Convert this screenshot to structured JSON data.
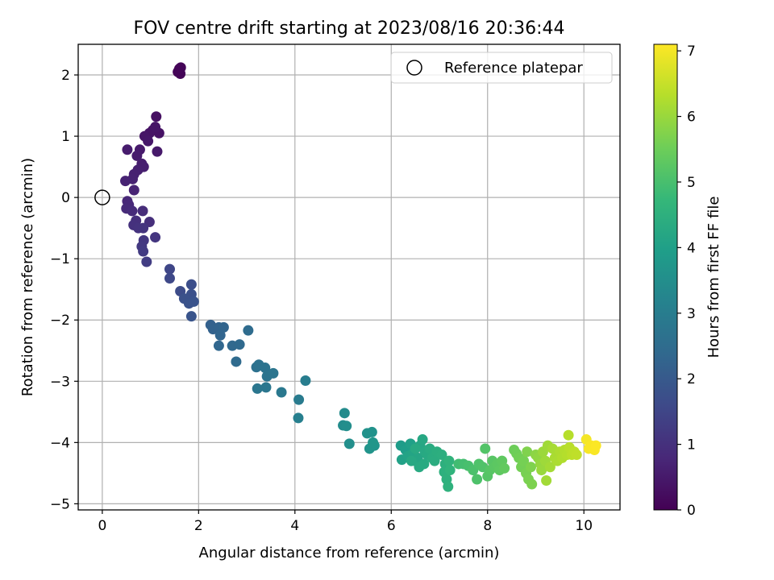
{
  "chart_data": {
    "type": "scatter",
    "title": "FOV centre drift starting at 2023/08/16 20:36:44",
    "xlabel": "Angular distance from reference (arcmin)",
    "ylabel": "Rotation from reference (arcmin)",
    "xlim": [
      -0.5,
      10.75
    ],
    "ylim": [
      -5.1,
      2.5
    ],
    "xticks": [
      0,
      2,
      4,
      6,
      8,
      10
    ],
    "yticks": [
      -5,
      -4,
      -3,
      -2,
      -1,
      0,
      1,
      2
    ],
    "grid": true,
    "legend": {
      "placement": "top-right",
      "entries": [
        "Reference platepar"
      ]
    },
    "reference_point": {
      "x": 0,
      "y": 0
    },
    "colorbar": {
      "label": "Hours from first FF file",
      "range": [
        0,
        7.1
      ],
      "ticks": [
        0,
        1,
        2,
        3,
        4,
        5,
        6,
        7
      ],
      "colormap": [
        "#440154",
        "#482878",
        "#3e4989",
        "#31688e",
        "#26828e",
        "#1f9e89",
        "#35b779",
        "#6ece58",
        "#b5de2b",
        "#fde725"
      ]
    },
    "points": [
      {
        "x": 1.6,
        "y": 2.1,
        "c": 0.05
      },
      {
        "x": 1.62,
        "y": 2.02,
        "c": 0.06
      },
      {
        "x": 1.57,
        "y": 2.05,
        "c": 0.07
      },
      {
        "x": 1.63,
        "y": 2.12,
        "c": 0.08
      },
      {
        "x": 1.12,
        "y": 1.32,
        "c": 0.3
      },
      {
        "x": 1.05,
        "y": 1.1,
        "c": 0.32
      },
      {
        "x": 1.18,
        "y": 1.05,
        "c": 0.35
      },
      {
        "x": 0.98,
        "y": 1.05,
        "c": 0.38
      },
      {
        "x": 1.1,
        "y": 1.15,
        "c": 0.4
      },
      {
        "x": 0.88,
        "y": 1.0,
        "c": 0.42
      },
      {
        "x": 0.95,
        "y": 0.92,
        "c": 0.45
      },
      {
        "x": 1.14,
        "y": 0.75,
        "c": 0.48
      },
      {
        "x": 0.78,
        "y": 0.78,
        "c": 0.5
      },
      {
        "x": 0.72,
        "y": 0.68,
        "c": 0.52
      },
      {
        "x": 0.52,
        "y": 0.78,
        "c": 0.55
      },
      {
        "x": 0.82,
        "y": 0.55,
        "c": 0.58
      },
      {
        "x": 0.86,
        "y": 0.5,
        "c": 0.6
      },
      {
        "x": 0.74,
        "y": 0.45,
        "c": 0.62
      },
      {
        "x": 0.66,
        "y": 0.38,
        "c": 0.64
      },
      {
        "x": 0.63,
        "y": 0.3,
        "c": 0.66
      },
      {
        "x": 0.48,
        "y": 0.27,
        "c": 0.68
      },
      {
        "x": 0.66,
        "y": 0.12,
        "c": 0.7
      },
      {
        "x": 0.52,
        "y": -0.06,
        "c": 0.8
      },
      {
        "x": 0.55,
        "y": -0.12,
        "c": 0.82
      },
      {
        "x": 0.5,
        "y": -0.18,
        "c": 0.85
      },
      {
        "x": 0.62,
        "y": -0.22,
        "c": 0.88
      },
      {
        "x": 0.84,
        "y": -0.22,
        "c": 0.9
      },
      {
        "x": 0.98,
        "y": -0.4,
        "c": 0.95
      },
      {
        "x": 0.7,
        "y": -0.38,
        "c": 0.98
      },
      {
        "x": 0.65,
        "y": -0.45,
        "c": 1.0
      },
      {
        "x": 0.75,
        "y": -0.5,
        "c": 1.05
      },
      {
        "x": 0.85,
        "y": -0.5,
        "c": 1.08
      },
      {
        "x": 1.1,
        "y": -0.65,
        "c": 1.1
      },
      {
        "x": 0.86,
        "y": -0.7,
        "c": 1.15
      },
      {
        "x": 0.82,
        "y": -0.8,
        "c": 1.2
      },
      {
        "x": 0.85,
        "y": -0.88,
        "c": 1.25
      },
      {
        "x": 0.92,
        "y": -1.05,
        "c": 1.3
      },
      {
        "x": 1.4,
        "y": -1.17,
        "c": 1.5
      },
      {
        "x": 1.4,
        "y": -1.32,
        "c": 1.55
      },
      {
        "x": 1.62,
        "y": -1.53,
        "c": 1.65
      },
      {
        "x": 1.85,
        "y": -1.42,
        "c": 1.7
      },
      {
        "x": 1.85,
        "y": -1.58,
        "c": 1.75
      },
      {
        "x": 1.7,
        "y": -1.65,
        "c": 1.78
      },
      {
        "x": 1.8,
        "y": -1.73,
        "c": 1.8
      },
      {
        "x": 1.9,
        "y": -1.7,
        "c": 1.83
      },
      {
        "x": 1.85,
        "y": -1.94,
        "c": 1.87
      },
      {
        "x": 2.25,
        "y": -2.08,
        "c": 2.2
      },
      {
        "x": 2.3,
        "y": -2.15,
        "c": 2.22
      },
      {
        "x": 2.42,
        "y": -2.12,
        "c": 2.25
      },
      {
        "x": 2.52,
        "y": -2.12,
        "c": 2.28
      },
      {
        "x": 2.45,
        "y": -2.25,
        "c": 2.3
      },
      {
        "x": 2.42,
        "y": -2.42,
        "c": 2.35
      },
      {
        "x": 2.7,
        "y": -2.42,
        "c": 2.4
      },
      {
        "x": 2.85,
        "y": -2.4,
        "c": 2.42
      },
      {
        "x": 2.78,
        "y": -2.68,
        "c": 2.45
      },
      {
        "x": 3.03,
        "y": -2.17,
        "c": 2.5
      },
      {
        "x": 3.2,
        "y": -2.77,
        "c": 2.65
      },
      {
        "x": 3.25,
        "y": -2.73,
        "c": 2.67
      },
      {
        "x": 3.38,
        "y": -2.78,
        "c": 2.7
      },
      {
        "x": 3.42,
        "y": -2.92,
        "c": 2.72
      },
      {
        "x": 3.55,
        "y": -2.87,
        "c": 2.75
      },
      {
        "x": 3.22,
        "y": -3.12,
        "c": 2.78
      },
      {
        "x": 3.4,
        "y": -3.1,
        "c": 2.8
      },
      {
        "x": 3.72,
        "y": -3.18,
        "c": 2.85
      },
      {
        "x": 4.08,
        "y": -3.3,
        "c": 2.95
      },
      {
        "x": 4.22,
        "y": -2.99,
        "c": 3.0
      },
      {
        "x": 4.07,
        "y": -3.6,
        "c": 3.05
      },
      {
        "x": 5.03,
        "y": -3.52,
        "c": 3.4
      },
      {
        "x": 5.0,
        "y": -3.72,
        "c": 3.45
      },
      {
        "x": 5.07,
        "y": -3.73,
        "c": 3.48
      },
      {
        "x": 5.13,
        "y": -4.02,
        "c": 3.52
      },
      {
        "x": 5.5,
        "y": -3.85,
        "c": 3.6
      },
      {
        "x": 5.6,
        "y": -3.83,
        "c": 3.62
      },
      {
        "x": 5.55,
        "y": -4.1,
        "c": 3.65
      },
      {
        "x": 5.65,
        "y": -4.05,
        "c": 3.7
      },
      {
        "x": 5.62,
        "y": -4.0,
        "c": 3.72
      },
      {
        "x": 6.2,
        "y": -4.05,
        "c": 3.9
      },
      {
        "x": 6.3,
        "y": -4.12,
        "c": 3.95
      },
      {
        "x": 6.4,
        "y": -4.02,
        "c": 4.0
      },
      {
        "x": 6.22,
        "y": -4.28,
        "c": 4.05
      },
      {
        "x": 6.35,
        "y": -4.22,
        "c": 4.1
      },
      {
        "x": 6.45,
        "y": -4.18,
        "c": 4.12
      },
      {
        "x": 6.5,
        "y": -4.3,
        "c": 4.15
      },
      {
        "x": 6.55,
        "y": -4.25,
        "c": 4.18
      },
      {
        "x": 6.6,
        "y": -4.05,
        "c": 4.2
      },
      {
        "x": 6.65,
        "y": -3.95,
        "c": 4.22
      },
      {
        "x": 6.7,
        "y": -4.15,
        "c": 4.25
      },
      {
        "x": 6.75,
        "y": -4.2,
        "c": 4.28
      },
      {
        "x": 6.58,
        "y": -4.4,
        "c": 4.3
      },
      {
        "x": 6.68,
        "y": -4.35,
        "c": 4.32
      },
      {
        "x": 6.8,
        "y": -4.1,
        "c": 4.35
      },
      {
        "x": 6.85,
        "y": -4.25,
        "c": 4.38
      },
      {
        "x": 6.9,
        "y": -4.3,
        "c": 4.4
      },
      {
        "x": 6.95,
        "y": -4.15,
        "c": 4.42
      },
      {
        "x": 7.05,
        "y": -4.2,
        "c": 4.45
      },
      {
        "x": 7.12,
        "y": -4.35,
        "c": 4.48
      },
      {
        "x": 7.1,
        "y": -4.48,
        "c": 4.5
      },
      {
        "x": 7.15,
        "y": -4.6,
        "c": 4.52
      },
      {
        "x": 7.18,
        "y": -4.72,
        "c": 4.55
      },
      {
        "x": 7.2,
        "y": -4.3,
        "c": 4.58
      },
      {
        "x": 7.22,
        "y": -4.45,
        "c": 4.6
      },
      {
        "x": 6.42,
        "y": -4.3,
        "c": 4.25
      },
      {
        "x": 6.5,
        "y": -4.1,
        "c": 4.3
      },
      {
        "x": 7.4,
        "y": -4.35,
        "c": 4.9
      },
      {
        "x": 7.5,
        "y": -4.35,
        "c": 4.95
      },
      {
        "x": 7.6,
        "y": -4.38,
        "c": 5.0
      },
      {
        "x": 7.7,
        "y": -4.45,
        "c": 5.05
      },
      {
        "x": 7.78,
        "y": -4.6,
        "c": 5.08
      },
      {
        "x": 7.82,
        "y": -4.35,
        "c": 5.1
      },
      {
        "x": 7.9,
        "y": -4.4,
        "c": 5.12
      },
      {
        "x": 7.95,
        "y": -4.1,
        "c": 5.15
      },
      {
        "x": 8.0,
        "y": -4.55,
        "c": 5.18
      },
      {
        "x": 8.05,
        "y": -4.45,
        "c": 5.2
      },
      {
        "x": 8.1,
        "y": -4.3,
        "c": 5.22
      },
      {
        "x": 8.15,
        "y": -4.4,
        "c": 5.25
      },
      {
        "x": 8.2,
        "y": -4.35,
        "c": 5.28
      },
      {
        "x": 8.25,
        "y": -4.45,
        "c": 5.3
      },
      {
        "x": 8.3,
        "y": -4.3,
        "c": 5.32
      },
      {
        "x": 8.35,
        "y": -4.42,
        "c": 5.35
      },
      {
        "x": 8.55,
        "y": -4.12,
        "c": 5.5
      },
      {
        "x": 8.6,
        "y": -4.18,
        "c": 5.52
      },
      {
        "x": 8.65,
        "y": -4.25,
        "c": 5.55
      },
      {
        "x": 8.7,
        "y": -4.4,
        "c": 5.58
      },
      {
        "x": 8.75,
        "y": -4.3,
        "c": 5.6
      },
      {
        "x": 8.8,
        "y": -4.5,
        "c": 5.62
      },
      {
        "x": 8.85,
        "y": -4.6,
        "c": 5.65
      },
      {
        "x": 8.92,
        "y": -4.68,
        "c": 5.68
      },
      {
        "x": 8.9,
        "y": -4.4,
        "c": 5.7
      },
      {
        "x": 8.82,
        "y": -4.15,
        "c": 5.72
      },
      {
        "x": 9.0,
        "y": -4.2,
        "c": 5.85
      },
      {
        "x": 9.05,
        "y": -4.25,
        "c": 5.9
      },
      {
        "x": 9.1,
        "y": -4.35,
        "c": 5.95
      },
      {
        "x": 9.12,
        "y": -4.45,
        "c": 6.0
      },
      {
        "x": 9.15,
        "y": -4.15,
        "c": 6.02
      },
      {
        "x": 9.2,
        "y": -4.3,
        "c": 6.05
      },
      {
        "x": 9.25,
        "y": -4.05,
        "c": 6.08
      },
      {
        "x": 9.22,
        "y": -4.62,
        "c": 6.1
      },
      {
        "x": 9.3,
        "y": -4.4,
        "c": 6.12
      },
      {
        "x": 9.35,
        "y": -4.1,
        "c": 6.15
      },
      {
        "x": 9.4,
        "y": -4.25,
        "c": 6.18
      },
      {
        "x": 9.45,
        "y": -4.3,
        "c": 6.2
      },
      {
        "x": 9.5,
        "y": -4.15,
        "c": 6.22
      },
      {
        "x": 9.55,
        "y": -4.25,
        "c": 6.25
      },
      {
        "x": 9.6,
        "y": -4.12,
        "c": 6.28
      },
      {
        "x": 9.65,
        "y": -4.2,
        "c": 6.3
      },
      {
        "x": 9.68,
        "y": -3.88,
        "c": 6.32
      },
      {
        "x": 9.7,
        "y": -4.08,
        "c": 6.35
      },
      {
        "x": 9.75,
        "y": -4.2,
        "c": 6.38
      },
      {
        "x": 9.8,
        "y": -4.15,
        "c": 6.4
      },
      {
        "x": 9.85,
        "y": -4.2,
        "c": 6.42
      },
      {
        "x": 10.05,
        "y": -3.95,
        "c": 7.0
      },
      {
        "x": 10.1,
        "y": -4.1,
        "c": 7.02
      },
      {
        "x": 10.15,
        "y": -4.05,
        "c": 7.04
      },
      {
        "x": 10.22,
        "y": -4.12,
        "c": 7.06
      },
      {
        "x": 10.25,
        "y": -4.05,
        "c": 7.08
      }
    ]
  }
}
